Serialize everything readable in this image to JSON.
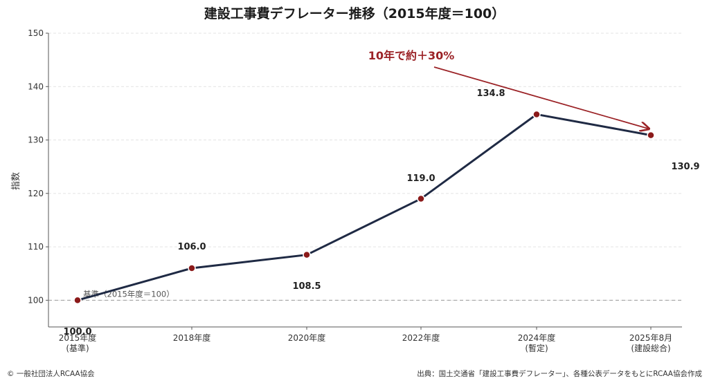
{
  "chart_data": {
    "type": "line",
    "title": "建設工事費デフレーター推移（2015年度＝100）",
    "ylabel": "指数",
    "xlabel": "",
    "ylim": [
      95,
      150
    ],
    "yticks": [
      100,
      110,
      120,
      130,
      140,
      150
    ],
    "grid": true,
    "categories": [
      [
        "2015年度",
        "(基準)"
      ],
      [
        "2018年度"
      ],
      [
        "2020年度"
      ],
      [
        "2022年度"
      ],
      [
        "2024年度",
        "(暫定)"
      ],
      [
        "2025年8月",
        "(建設総合)"
      ]
    ],
    "values": [
      100.0,
      106.0,
      108.5,
      119.0,
      134.8,
      130.9
    ],
    "data_labels": [
      "100.0",
      "106.0",
      "108.5",
      "119.0",
      "134.8",
      "130.9"
    ],
    "line_color": "#1f2a44",
    "marker_color": "#8b1a1a",
    "baseline": {
      "value": 100,
      "label": "基準（2015年度＝100）"
    },
    "annotation": {
      "text": "10年で約＋30%",
      "color": "#9b2226"
    }
  },
  "footer": {
    "copyright": "© 一般社団法人RCAA協会",
    "source": "出典：国土交通省「建設工事費デフレーター」、各種公表データをもとにRCAA協会作成"
  }
}
